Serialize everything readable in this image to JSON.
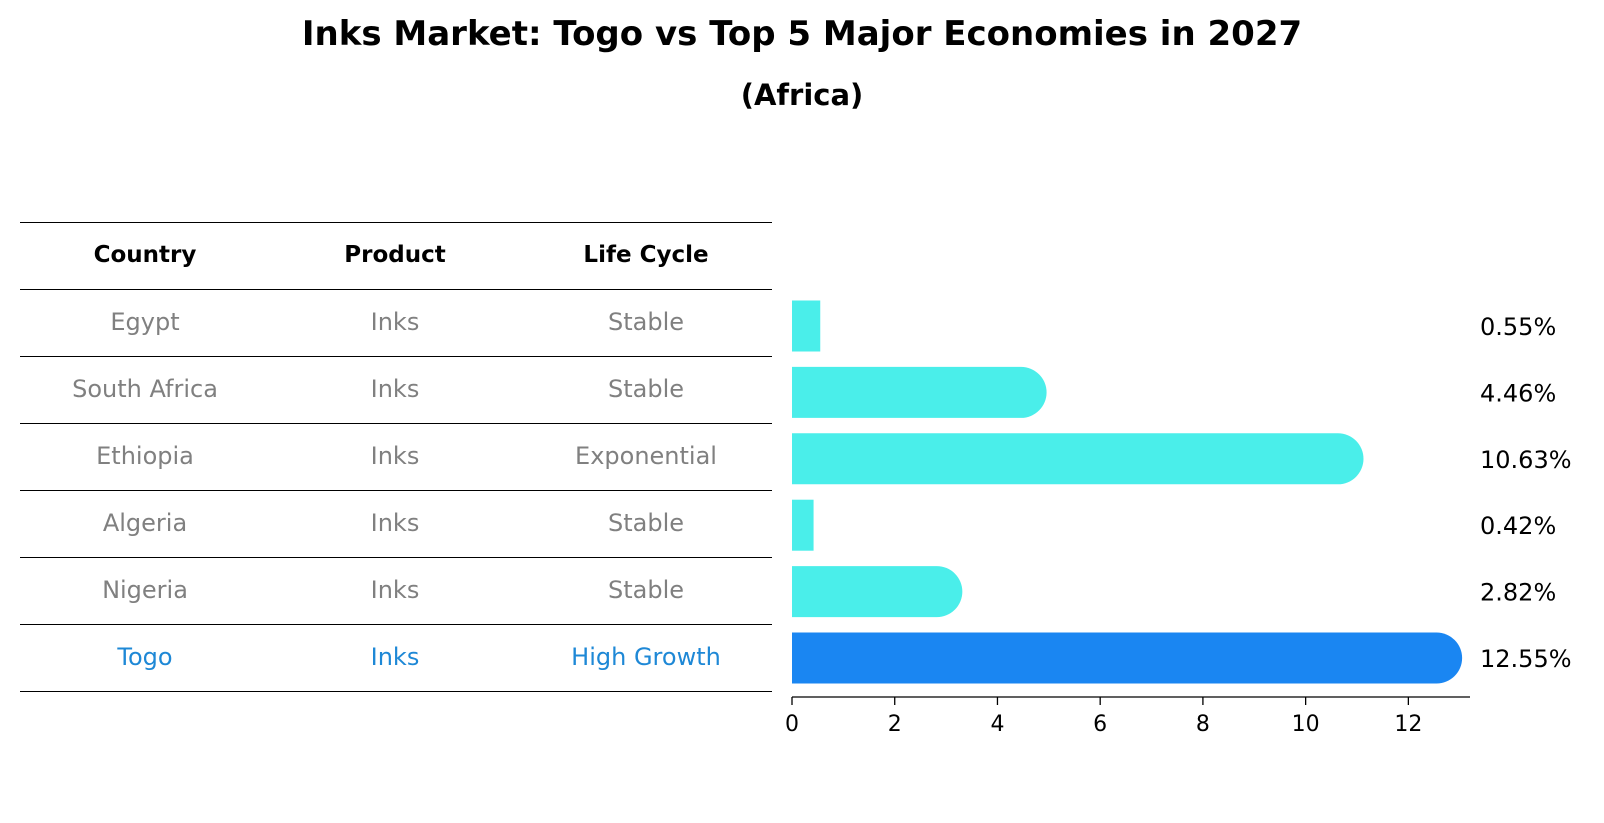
{
  "title": "Inks Market: Togo vs Top 5 Major Economies in 2027",
  "subtitle": "(Africa)",
  "table": {
    "headers": [
      "Country",
      "Product",
      "Life Cycle"
    ],
    "rows": [
      {
        "country": "Egypt",
        "product": "Inks",
        "life_cycle": "Stable"
      },
      {
        "country": "South Africa",
        "product": "Inks",
        "life_cycle": "Stable"
      },
      {
        "country": "Ethiopia",
        "product": "Inks",
        "life_cycle": "Exponential"
      },
      {
        "country": "Algeria",
        "product": "Inks",
        "life_cycle": "Stable"
      },
      {
        "country": "Nigeria",
        "product": "Inks",
        "life_cycle": "Stable"
      },
      {
        "country": "Togo",
        "product": "Inks",
        "life_cycle": "High Growth"
      }
    ]
  },
  "chart_data": {
    "type": "bar",
    "orientation": "horizontal",
    "categories": [
      "Egypt",
      "South Africa",
      "Ethiopia",
      "Algeria",
      "Nigeria",
      "Togo"
    ],
    "values": [
      0.55,
      4.46,
      10.63,
      0.42,
      2.82,
      12.55
    ],
    "value_labels": [
      "0.55%",
      "4.46%",
      "10.63%",
      "0.42%",
      "2.82%",
      "12.55%"
    ],
    "highlight": "Togo",
    "xlim": [
      0,
      13.2
    ],
    "xticks": [
      0,
      2,
      4,
      6,
      8,
      10,
      12
    ],
    "grid": false,
    "colors": {
      "bar": "#4aeeea",
      "highlight": "#1a86f2",
      "text": "#808080",
      "highlight_text": "#1e88d6"
    }
  }
}
